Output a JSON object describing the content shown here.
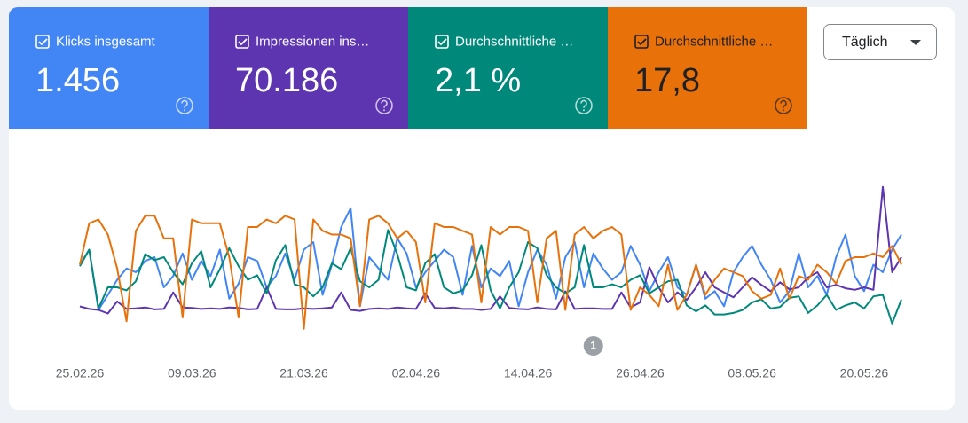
{
  "period_select": "Täglich",
  "chart_data": {
    "type": "line",
    "categories": [
      "25.02.26",
      null,
      null,
      null,
      null,
      null,
      null,
      null,
      null,
      null,
      null,
      null,
      "09.03.26",
      null,
      null,
      null,
      null,
      null,
      null,
      null,
      null,
      null,
      null,
      null,
      "21.03.26",
      null,
      null,
      null,
      null,
      null,
      null,
      null,
      null,
      null,
      null,
      null,
      "02.04.26",
      null,
      null,
      null,
      null,
      null,
      null,
      null,
      null,
      null,
      null,
      null,
      "14.04.26",
      null,
      null,
      null,
      null,
      null,
      null,
      null,
      null,
      null,
      null,
      null,
      "26.04.26",
      null,
      null,
      null,
      null,
      null,
      null,
      null,
      null,
      null,
      null,
      null,
      "08.05.26",
      null,
      null,
      null,
      null,
      null,
      null,
      null,
      null,
      null,
      null,
      null,
      "20.05.26",
      null,
      null,
      null,
      null
    ],
    "annotations": [
      {
        "index": 55,
        "label": "1"
      }
    ],
    "series": [
      {
        "name": "Klicks insgesamt",
        "total": "1.456",
        "color": "#4285f4",
        "ylim": [
          0,
          40
        ],
        "values": [
          18,
          22,
          6,
          10,
          14,
          17,
          16,
          19,
          20,
          12,
          15,
          21,
          14,
          19,
          15,
          22,
          9,
          13,
          20,
          19,
          12,
          15,
          21,
          14,
          22,
          24,
          10,
          18,
          28,
          33,
          7,
          20,
          17,
          14,
          25,
          21,
          12,
          16,
          19,
          22,
          20,
          10,
          23,
          12,
          17,
          15,
          19,
          7,
          16,
          22,
          18,
          9,
          20,
          24,
          12,
          21,
          17,
          14,
          16,
          23,
          18,
          11,
          16,
          20,
          12,
          10,
          18,
          9,
          11,
          7,
          16,
          20,
          23,
          18,
          14,
          8,
          11,
          21,
          12,
          15,
          10,
          20,
          26,
          15,
          11,
          18,
          16,
          22,
          26
        ]
      },
      {
        "name": "Impressionen ins…",
        "total": "70.186",
        "color": "#5e35b1",
        "ylim": [
          0,
          3000
        ],
        "values": [
          520,
          470,
          450,
          380,
          620,
          470,
          480,
          500,
          460,
          470,
          800,
          500,
          490,
          470,
          480,
          470,
          500,
          490,
          460,
          470,
          900,
          470,
          460,
          460,
          480,
          470,
          480,
          500,
          800,
          450,
          430,
          470,
          480,
          470,
          500,
          480,
          470,
          780,
          490,
          480,
          500,
          470,
          470,
          450,
          470,
          720,
          490,
          470,
          460,
          500,
          470,
          460,
          820,
          470,
          480,
          480,
          470,
          470,
          800,
          500,
          600,
          1300,
          900,
          600,
          800,
          650,
          900,
          1200,
          900,
          800,
          700,
          900,
          1100,
          950,
          820,
          1000,
          860,
          900,
          1100,
          1200,
          900,
          950,
          880,
          850,
          900,
          850,
          2900,
          1200,
          1500
        ]
      },
      {
        "name": "Durchschnittliche …",
        "total": "2,1 %",
        "color": "#00897b",
        "ylim": [
          0,
          10
        ],
        "values": [
          4.4,
          5.5,
          1.6,
          3.0,
          3.0,
          2.8,
          3.4,
          5.2,
          4.8,
          5.0,
          4.0,
          3.2,
          4.6,
          5.4,
          3.0,
          4.2,
          5.6,
          4.4,
          3.5,
          3.8,
          2.6,
          4.8,
          5.8,
          3.2,
          3.0,
          2.4,
          3.0,
          4.6,
          4.2,
          5.6,
          3.4,
          3.0,
          3.5,
          6.8,
          5.2,
          3.0,
          2.8,
          4.6,
          5.2,
          3.0,
          2.6,
          2.8,
          3.8,
          5.8,
          2.8,
          1.6,
          3.0,
          4.0,
          6.0,
          5.6,
          3.8,
          3.0,
          2.6,
          3.0,
          5.8,
          3.0,
          3.0,
          3.2,
          3.0,
          3.5,
          3.8,
          2.6,
          3.0,
          3.4,
          3.5,
          1.8,
          1.4,
          1.8,
          1.2,
          1.2,
          1.3,
          1.5,
          2.0,
          2.2,
          1.6,
          1.7,
          2.3,
          2.4,
          1.3,
          1.8,
          2.5,
          1.5,
          1.8,
          2.0,
          1.6,
          2.4,
          2.5,
          0.6,
          2.2
        ]
      },
      {
        "name": "Durchschnittliche …",
        "total": "17,8",
        "color": "#e8710a",
        "ylim": [
          40,
          0
        ],
        "values": [
          22,
          11,
          10,
          14,
          23,
          37,
          13,
          9,
          9,
          15,
          15,
          36,
          10,
          11,
          11,
          11,
          20,
          36,
          12,
          12,
          10,
          11,
          9,
          10,
          39,
          10,
          13,
          14,
          14,
          15,
          33,
          10,
          9,
          11,
          15,
          13,
          16,
          32,
          11,
          12,
          12,
          13,
          14,
          32,
          12,
          14,
          12,
          12,
          13,
          32,
          15,
          13,
          34,
          14,
          12,
          15,
          13,
          12,
          14,
          34,
          28,
          30,
          33,
          22,
          34,
          30,
          22,
          30,
          26,
          23,
          24,
          25,
          29,
          31,
          30,
          23,
          31,
          25,
          26,
          22,
          24,
          27,
          21,
          20,
          20,
          19,
          20,
          17,
          22
        ]
      }
    ]
  }
}
